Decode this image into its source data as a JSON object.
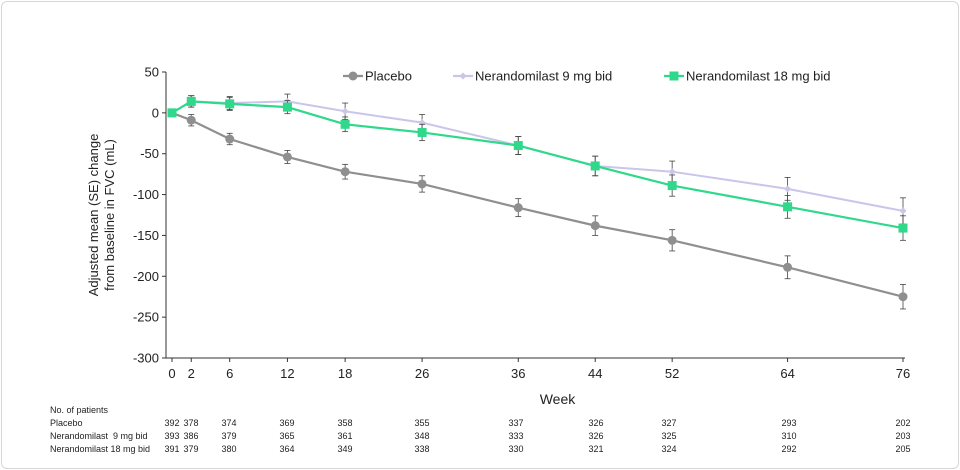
{
  "chart_data": {
    "type": "line",
    "title": "",
    "xlabel": "Week",
    "ylabel_line1": "Adjusted mean (SE) change",
    "ylabel_line2": "from baseline in FVC (mL)",
    "x": [
      0,
      2,
      6,
      12,
      18,
      26,
      36,
      44,
      52,
      64,
      76
    ],
    "x_tick_labels": [
      "0",
      "2",
      "6",
      "12",
      "18",
      "26",
      "36",
      "44",
      "52",
      "64",
      "76"
    ],
    "ylim": [
      -300,
      50
    ],
    "y_ticks": [
      50,
      0,
      -50,
      -100,
      -150,
      -200,
      -250,
      -300
    ],
    "legend_position": "top",
    "series": [
      {
        "name": "Placebo",
        "color": "#8f8f8f",
        "marker": "circle",
        "values": [
          0,
          -9,
          -32,
          -54,
          -72,
          -87,
          -116,
          -138,
          -156,
          -189,
          -225
        ],
        "se": [
          0,
          7,
          7,
          8,
          9,
          10,
          11,
          12,
          13,
          14,
          15
        ]
      },
      {
        "name": "Nerandomilast 9 mg bid",
        "color": "#c9c6ea",
        "marker": "diamond",
        "values": [
          0,
          14,
          12,
          14,
          2,
          -12,
          -40,
          -65,
          -72,
          -93,
          -120
        ],
        "se": [
          0,
          7,
          8,
          9,
          10,
          10,
          11,
          12,
          13,
          14,
          16
        ]
      },
      {
        "name": "Nerandomilast 18 mg bid",
        "color": "#2fd88a",
        "marker": "square",
        "values": [
          0,
          14,
          11,
          7,
          -14,
          -24,
          -40,
          -65,
          -89,
          -115,
          -141
        ],
        "se": [
          0,
          7,
          8,
          8,
          9,
          10,
          11,
          12,
          13,
          14,
          15
        ]
      }
    ]
  },
  "patients_table": {
    "header": "No. of patients",
    "rows": [
      {
        "label": "Placebo",
        "values": [
          "392",
          "378",
          "374",
          "369",
          "358",
          "355",
          "337",
          "326",
          "327",
          "293",
          "202"
        ]
      },
      {
        "label": "Nerandomilast  9 mg bid",
        "values": [
          "393",
          "386",
          "379",
          "365",
          "361",
          "348",
          "333",
          "326",
          "325",
          "310",
          "203"
        ]
      },
      {
        "label": "Nerandomilast 18 mg bid",
        "values": [
          "391",
          "379",
          "380",
          "364",
          "349",
          "338",
          "330",
          "321",
          "324",
          "292",
          "205"
        ]
      }
    ]
  }
}
